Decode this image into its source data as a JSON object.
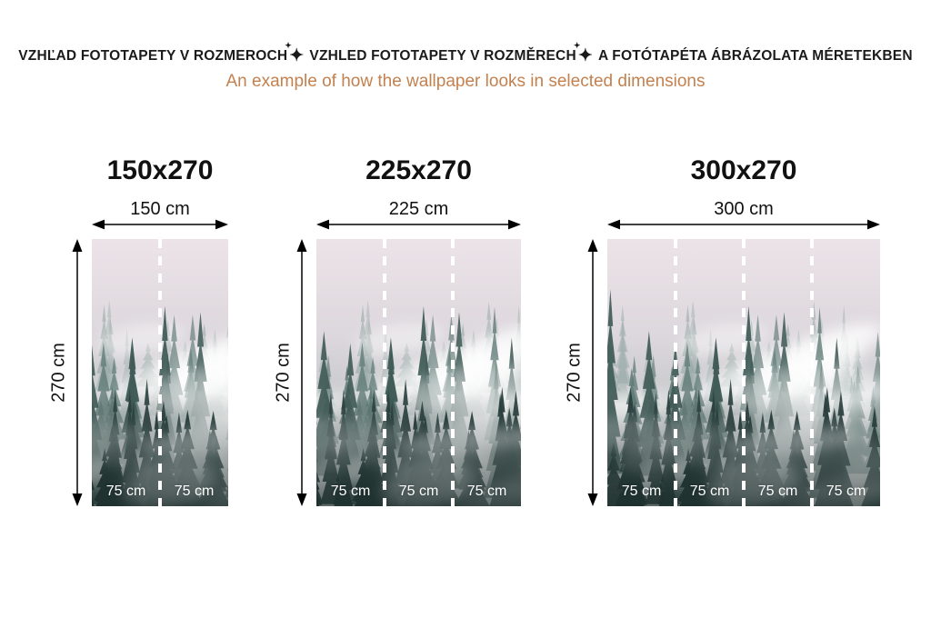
{
  "header": {
    "title_segments": [
      "VZHĽAD FOTOTAPETY V ROZMEROCH",
      "VZHLED FOTOTAPETY V ROZMĚRECH",
      "A FOTÓTAPÉTA ÁBRÁZOLATA MÉRETEKBEN"
    ],
    "separator_icon": "✦",
    "title_color": "#1b1b1b",
    "subtitle": "An example of how the wallpaper looks in selected dimensions",
    "subtitle_color": "#c3814f"
  },
  "panels": [
    {
      "title": "150x270",
      "width_label": "150 cm",
      "height_label": "270 cm",
      "panel_labels": [
        "75 cm",
        "75 cm"
      ]
    },
    {
      "title": "225x270",
      "width_label": "225 cm",
      "height_label": "270 cm",
      "panel_labels": [
        "75 cm",
        "75 cm",
        "75 cm"
      ]
    },
    {
      "title": "300x270",
      "width_label": "300 cm",
      "height_label": "270 cm",
      "panel_labels": [
        "75 cm",
        "75 cm",
        "75 cm",
        "75 cm"
      ]
    }
  ],
  "artwork": {
    "name": "misty-forest-photo",
    "cut_line_color": "#ffffff",
    "panel_label_color": "#ffffff"
  }
}
